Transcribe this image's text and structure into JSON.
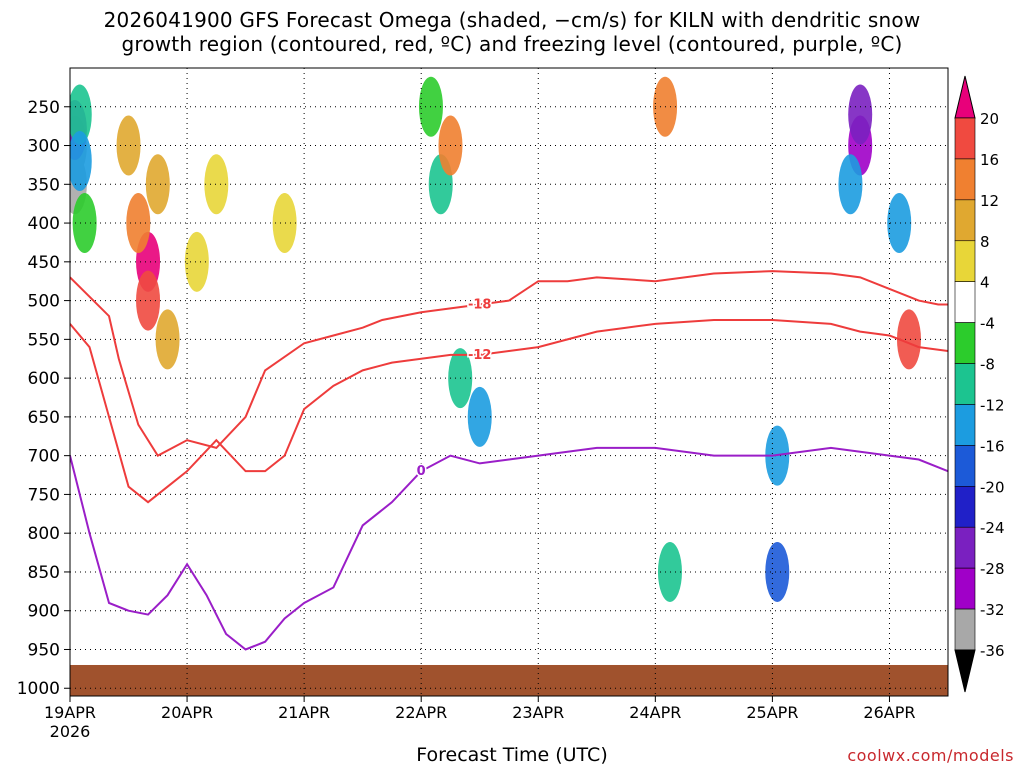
{
  "header": {
    "title_line1": "2026041900 GFS Forecast Omega (shaded, −cm/s) for KILN with dendritic snow",
    "title_line2": "growth region (contoured, red, ºC) and freezing level (contoured, purple, ºC)"
  },
  "footer": {
    "xlabel": "Forecast Time (UTC)",
    "credit": "coolwx.com/models"
  },
  "chart_data": {
    "type": "heatmap",
    "title": "2026041900 GFS Forecast Omega (shaded, −cm/s) for KILN with dendritic snow growth region (contoured, red, ºC) and freezing level (contoured, purple, ºC)",
    "xlabel": "Forecast Time (UTC)",
    "ylabel": "",
    "x_ticks": [
      "19APR",
      "20APR",
      "21APR",
      "22APR",
      "23APR",
      "24APR",
      "25APR",
      "26APR"
    ],
    "x_tick_hours": [
      0,
      24,
      48,
      72,
      96,
      120,
      144,
      168
    ],
    "x_sub_label": "2026",
    "xlim_hours": [
      0,
      180
    ],
    "y_ticks": [
      250,
      300,
      350,
      400,
      450,
      500,
      550,
      600,
      650,
      700,
      750,
      800,
      850,
      900,
      950,
      1000
    ],
    "ylim": [
      1000,
      200
    ],
    "grid": true,
    "colorbar": {
      "ticks": [
        20,
        16,
        12,
        8,
        4,
        -4,
        -8,
        -12,
        -16,
        -20,
        -24,
        -28,
        -32,
        -36
      ],
      "colors": [
        "#e8007a",
        "#f04a40",
        "#f08030",
        "#e0a830",
        "#e8d638",
        "#ffffff",
        "#2ccc2c",
        "#1cc490",
        "#1c9ce0",
        "#1c5ad8",
        "#2020c8",
        "#7a20c0",
        "#a000c8",
        "#a8a8a8",
        "#000000"
      ]
    },
    "shading_cells": [
      {
        "hour": 1,
        "p": 300,
        "val": -36
      },
      {
        "hour": 1,
        "p": 350,
        "val": -36
      },
      {
        "hour": 1,
        "p": 280,
        "val": -28
      },
      {
        "hour": 2,
        "p": 260,
        "val": -12
      },
      {
        "hour": 2,
        "p": 320,
        "val": -16
      },
      {
        "hour": 3,
        "p": 400,
        "val": -8
      },
      {
        "hour": 16,
        "p": 450,
        "val": 20
      },
      {
        "hour": 16,
        "p": 500,
        "val": 16
      },
      {
        "hour": 14,
        "p": 400,
        "val": 12
      },
      {
        "hour": 18,
        "p": 350,
        "val": 8
      },
      {
        "hour": 12,
        "p": 300,
        "val": 8
      },
      {
        "hour": 20,
        "p": 550,
        "val": 8
      },
      {
        "hour": 26,
        "p": 450,
        "val": 4
      },
      {
        "hour": 30,
        "p": 350,
        "val": 4
      },
      {
        "hour": 44,
        "p": 400,
        "val": 4
      },
      {
        "hour": 74,
        "p": 250,
        "val": -8
      },
      {
        "hour": 76,
        "p": 350,
        "val": -12
      },
      {
        "hour": 80,
        "p": 600,
        "val": -12
      },
      {
        "hour": 84,
        "p": 650,
        "val": -16
      },
      {
        "hour": 78,
        "p": 300,
        "val": 12
      },
      {
        "hour": 123,
        "p": 850,
        "val": -12
      },
      {
        "hour": 122,
        "p": 250,
        "val": 12
      },
      {
        "hour": 145,
        "p": 700,
        "val": -16
      },
      {
        "hour": 145,
        "p": 850,
        "val": -20
      },
      {
        "hour": 162,
        "p": 300,
        "val": -32
      },
      {
        "hour": 162,
        "p": 260,
        "val": -28
      },
      {
        "hour": 160,
        "p": 350,
        "val": -16
      },
      {
        "hour": 170,
        "p": 400,
        "val": -16
      },
      {
        "hour": 172,
        "p": 550,
        "val": 16
      }
    ],
    "series": [
      {
        "name": "-18",
        "color": "#ee3c3c",
        "x": [
          0,
          4,
          8,
          10,
          14,
          18,
          24,
          30,
          36,
          40,
          48,
          54,
          60,
          64,
          72,
          78,
          84,
          90,
          96,
          102,
          108,
          120,
          132,
          144,
          156,
          162,
          168,
          174,
          178,
          180
        ],
        "y": [
          470,
          495,
          520,
          575,
          660,
          700,
          680,
          690,
          650,
          590,
          555,
          545,
          535,
          525,
          515,
          510,
          505,
          500,
          475,
          475,
          470,
          475,
          465,
          462,
          465,
          470,
          485,
          500,
          505,
          505
        ]
      },
      {
        "name": "-12",
        "color": "#ee3c3c",
        "x": [
          0,
          4,
          8,
          12,
          16,
          20,
          24,
          30,
          36,
          40,
          44,
          48,
          54,
          60,
          66,
          72,
          78,
          84,
          90,
          96,
          102,
          108,
          114,
          120,
          132,
          144,
          156,
          162,
          168,
          174,
          180
        ],
        "y": [
          530,
          560,
          650,
          740,
          760,
          740,
          720,
          680,
          720,
          720,
          700,
          640,
          610,
          590,
          580,
          575,
          570,
          570,
          565,
          560,
          550,
          540,
          535,
          530,
          525,
          525,
          530,
          540,
          545,
          560,
          565
        ]
      },
      {
        "name": "0",
        "color": "#9a1ec8",
        "x": [
          0,
          4,
          8,
          12,
          16,
          20,
          24,
          28,
          32,
          36,
          40,
          44,
          48,
          54,
          60,
          66,
          72,
          78,
          84,
          90,
          96,
          102,
          108,
          120,
          132,
          144,
          156,
          168,
          174,
          180
        ],
        "y": [
          700,
          800,
          890,
          900,
          905,
          880,
          840,
          880,
          930,
          950,
          940,
          910,
          890,
          870,
          790,
          760,
          720,
          700,
          710,
          705,
          700,
          695,
          690,
          690,
          700,
          700,
          690,
          700,
          705,
          720
        ]
      }
    ],
    "ground": {
      "p_top": 970,
      "p_bottom": 1010,
      "color": "#a0522d"
    }
  }
}
